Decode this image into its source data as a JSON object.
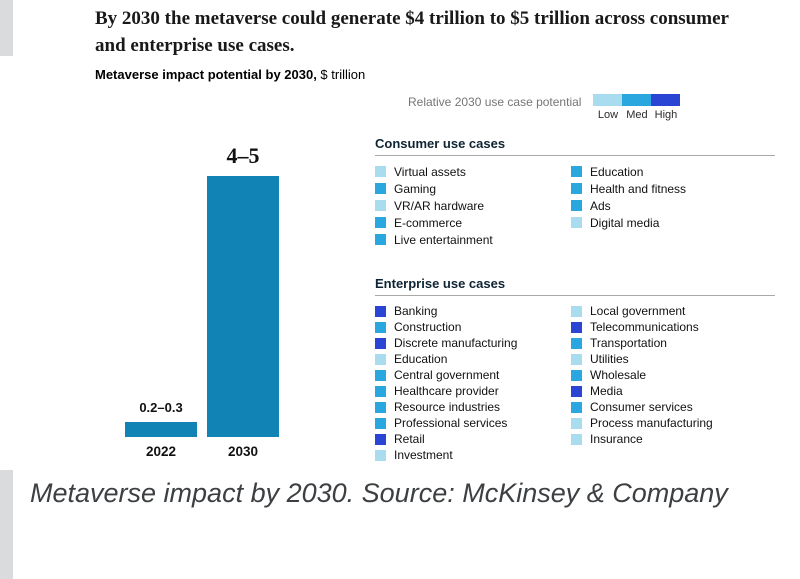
{
  "header": {
    "title": "By 2030 the metaverse could generate $4 trillion to $5 trillion across consumer and enterprise use cases."
  },
  "caption": {
    "text": "Metaverse impact by 2030. Source: McKinsey & Company"
  },
  "chart_data": {
    "type": "bar",
    "title_bold": "Metaverse impact potential by 2030,",
    "title_unit": " $ trillion",
    "xlabel": "",
    "ylabel": "$ trillion",
    "ylim": [
      0,
      5
    ],
    "categories": [
      "2022",
      "2030"
    ],
    "bars": [
      {
        "category": "2022",
        "range": [
          0.2,
          0.3
        ],
        "label": "0.2–0.3"
      },
      {
        "category": "2030",
        "range": [
          4,
          5
        ],
        "label": "4–5"
      }
    ],
    "bar_color": "#1283b5",
    "legend": {
      "label": "Relative 2030 use case potential",
      "levels": [
        {
          "name": "Low",
          "color": "#a9dcee"
        },
        {
          "name": "Med",
          "color": "#2ba7e0"
        },
        {
          "name": "High",
          "color": "#2a44d4"
        }
      ]
    },
    "level_colors": {
      "low": "#a9dcee",
      "med": "#2ba7e0",
      "high": "#2a44d4"
    },
    "groups": [
      {
        "title": "Consumer use cases",
        "columns": [
          [
            {
              "label": "Virtual assets",
              "level": "low"
            },
            {
              "label": "Gaming",
              "level": "med"
            },
            {
              "label": "VR/AR hardware",
              "level": "low"
            },
            {
              "label": "E-commerce",
              "level": "med"
            },
            {
              "label": "Live entertainment",
              "level": "med"
            }
          ],
          [
            {
              "label": "Education",
              "level": "med"
            },
            {
              "label": "Health and fitness",
              "level": "med"
            },
            {
              "label": "Ads",
              "level": "med"
            },
            {
              "label": "Digital media",
              "level": "low"
            }
          ]
        ]
      },
      {
        "title": "Enterprise use cases",
        "columns": [
          [
            {
              "label": "Banking",
              "level": "high"
            },
            {
              "label": "Construction",
              "level": "med"
            },
            {
              "label": "Discrete manufacturing",
              "level": "high"
            },
            {
              "label": "Education",
              "level": "low"
            },
            {
              "label": "Central government",
              "level": "med"
            },
            {
              "label": "Healthcare provider",
              "level": "med"
            },
            {
              "label": "Resource industries",
              "level": "med"
            },
            {
              "label": "Professional services",
              "level": "med"
            },
            {
              "label": "Retail",
              "level": "high"
            },
            {
              "label": "Investment",
              "level": "low"
            }
          ],
          [
            {
              "label": "Local government",
              "level": "low"
            },
            {
              "label": "Telecommunications",
              "level": "high"
            },
            {
              "label": "Transportation",
              "level": "med"
            },
            {
              "label": "Utilities",
              "level": "low"
            },
            {
              "label": "Wholesale",
              "level": "med"
            },
            {
              "label": "Media",
              "level": "high"
            },
            {
              "label": "Consumer services",
              "level": "med"
            },
            {
              "label": "Process manufacturing",
              "level": "low"
            },
            {
              "label": "Insurance",
              "level": "low"
            }
          ]
        ]
      }
    ]
  }
}
